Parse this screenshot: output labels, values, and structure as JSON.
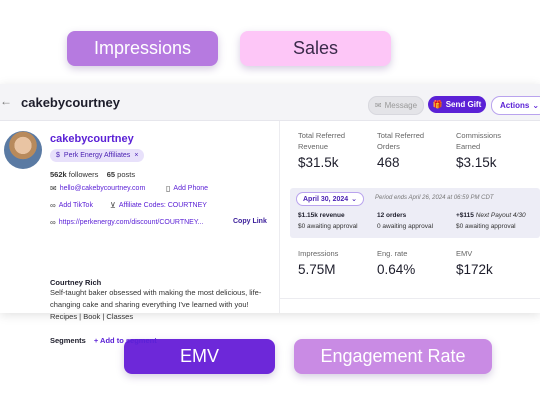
{
  "pills": {
    "impressions": "Impressions",
    "sales": "Sales",
    "emv": "EMV",
    "engagement": "Engagement Rate"
  },
  "header": {
    "title": "cakebycourtney",
    "message_label": "Message",
    "gift_label": "Send Gift",
    "actions_label": "Actions"
  },
  "profile": {
    "handle": "cakebycourtney",
    "tag": "Perk Energy Affiliates",
    "followers_count": "562k",
    "followers_label": "followers",
    "posts_count": "65",
    "posts_label": "posts",
    "email": "hello@cakebycourtney.com",
    "add_phone": "Add Phone",
    "add_tiktok": "Add TikTok",
    "affiliate_codes": "Affiliate Codes: COURTNEY",
    "link": "https://perkenergy.com/discount/COURTNEY...",
    "copy_link": "Copy Link",
    "bio_name": "Courtney Rich",
    "bio": "Self-taught baker obsessed with making the most delicious, life-changing cake and sharing everything I've learned with you! Recipes | Book | Classes",
    "segments_label": "Segments",
    "add_segment": "+ Add to segment"
  },
  "metrics_top": [
    {
      "label": "Total Referred Revenue",
      "value": "$31.5k"
    },
    {
      "label": "Total Referred Orders",
      "value": "468"
    },
    {
      "label": "Commissions Earned",
      "value": "$3.15k"
    }
  ],
  "period": {
    "date": "April 30, 2024",
    "note": "Period ends April 26, 2024 at 06:59 PM CDT",
    "revenue": "$1.15k revenue",
    "revenue_sub": "$0 awaiting approval",
    "orders": "12 orders",
    "orders_sub": "0 awaiting approval",
    "payout_amount": "+$115",
    "payout_label": "Next Payout 4/30",
    "payout_sub": "$0 awaiting approval"
  },
  "metrics_bottom": [
    {
      "label": "Impressions",
      "value": "5.75M"
    },
    {
      "label": "Eng. rate",
      "value": "0.64%"
    },
    {
      "label": "EMV",
      "value": "$172k"
    }
  ]
}
